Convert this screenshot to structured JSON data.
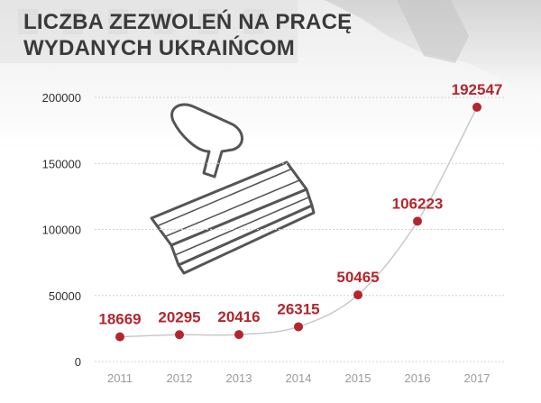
{
  "title_line1": "LICZBA ZEZWOLEŃ NA PRACĘ",
  "title_line2": "WYDANYCH UKRAIŃCOM",
  "colors": {
    "accent": "#b3262d",
    "line": "#c9c9c9",
    "grid": "#d4d4d4",
    "title": "#3a3a3a",
    "tick": "#9a9a9a"
  },
  "chart_data": {
    "type": "line",
    "title": "LICZBA ZEZWOLEŃ NA PRACĘ WYDANYCH UKRAIŃCOM",
    "xlabel": "",
    "ylabel": "",
    "categories": [
      "2011",
      "2012",
      "2013",
      "2014",
      "2015",
      "2016",
      "2017"
    ],
    "series": [
      {
        "values": [
          18669,
          20295,
          20416,
          26315,
          50465,
          106223,
          192547
        ]
      }
    ],
    "ylim": [
      0,
      200000
    ],
    "yticks": [
      0,
      50000,
      100000,
      150000,
      200000
    ],
    "grid": true,
    "data_labels": true,
    "legend": "none"
  }
}
